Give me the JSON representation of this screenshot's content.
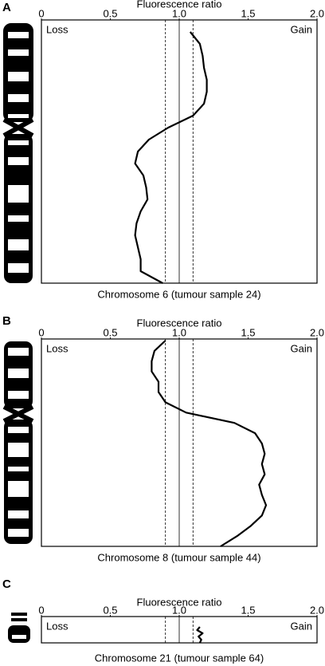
{
  "chart_data": [
    {
      "type": "line",
      "panel": "A",
      "xlabel": "Fluorescence ratio",
      "caption": "Chromosome 6 (tumour sample 24)",
      "annotations": [
        "Loss",
        "Gain"
      ],
      "xlim": [
        0,
        2
      ],
      "xticks": [
        0,
        0.5,
        {
          "value": 1,
          "label": "1.0"
        },
        1.5,
        {
          "value": 2,
          "label": "2.0"
        }
      ],
      "reference_line": 1,
      "threshold_lines": [
        0.9,
        1.1
      ],
      "color": "#000000",
      "values": [
        1.08,
        1.15,
        1.17,
        1.18,
        1.2,
        1.2,
        1.18,
        1.1,
        0.92,
        0.78,
        0.7,
        0.68,
        0.74,
        0.76,
        0.77,
        0.72,
        0.69,
        0.68,
        0.7,
        0.72,
        0.72,
        0.88
      ]
    },
    {
      "type": "line",
      "panel": "B",
      "xlabel": "Fluorescence ratio",
      "caption": "Chromosome 8 (tumour sample 44)",
      "annotations": [
        "Loss",
        "Gain"
      ],
      "xlim": [
        0,
        2
      ],
      "xticks": [
        0,
        0.5,
        {
          "value": 1,
          "label": "1.0"
        },
        1.5,
        {
          "value": 2,
          "label": "2.0"
        }
      ],
      "reference_line": 1,
      "threshold_lines": [
        0.9,
        1.1
      ],
      "color": "#000000",
      "values": [
        0.9,
        0.82,
        0.8,
        0.8,
        0.85,
        0.85,
        0.9,
        1.05,
        1.4,
        1.55,
        1.6,
        1.62,
        1.6,
        1.62,
        1.58,
        1.6,
        1.63,
        1.6,
        1.52,
        1.42,
        1.3
      ]
    },
    {
      "type": "line",
      "panel": "C",
      "xlabel": "Fluorescence ratio",
      "caption": "Chromosome 21 (tumour sample 64)",
      "annotations": [
        "Loss",
        "Gain"
      ],
      "xlim": [
        0,
        2
      ],
      "xticks": [
        0,
        0.5,
        {
          "value": 1,
          "label": "1.0"
        },
        1.5,
        {
          "value": 2,
          "label": "2.0"
        }
      ],
      "reference_line": 1,
      "threshold_lines": [
        0.9,
        1.1
      ],
      "color": "#000000",
      "values": [
        1.15,
        1.13,
        1.17,
        1.14,
        1.16,
        1.15
      ]
    }
  ]
}
